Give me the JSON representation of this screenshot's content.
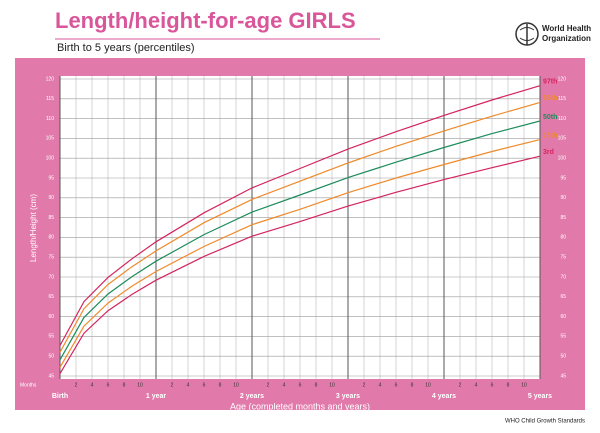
{
  "header": {
    "title": "Length/height-for-age GIRLS",
    "subtitle": "Birth to 5 years (percentiles)",
    "logo_lines": [
      "World Health",
      "Organization"
    ]
  },
  "footer": "WHO Child Growth Standards",
  "chart_data": {
    "type": "line",
    "x_label": "Age (completed months and years)",
    "y_label": "Length/Height (cm)",
    "x_unit_label": "Months",
    "x": [
      0,
      3,
      6,
      9,
      12,
      18,
      24,
      30,
      36,
      42,
      48,
      54,
      60
    ],
    "series": [
      {
        "name": "97th",
        "color": "#d3245f",
        "values": [
          52.7,
          63.8,
          69.9,
          74.6,
          78.9,
          86.2,
          92.5,
          97.4,
          102.3,
          106.7,
          110.8,
          114.7,
          118.3
        ]
      },
      {
        "name": "85th",
        "color": "#ef8a2b",
        "values": [
          51.0,
          62.0,
          68.1,
          72.6,
          76.6,
          83.7,
          89.6,
          94.2,
          98.8,
          103.0,
          106.9,
          110.6,
          114.1
        ]
      },
      {
        "name": "50th",
        "color": "#1e8c5c",
        "values": [
          49.1,
          59.8,
          65.7,
          70.1,
          74.0,
          80.7,
          86.4,
          90.7,
          95.1,
          99.0,
          102.7,
          106.2,
          109.4
        ]
      },
      {
        "name": "15th",
        "color": "#ef8a2b",
        "values": [
          47.2,
          57.6,
          63.4,
          67.7,
          71.4,
          77.7,
          83.2,
          87.1,
          91.3,
          95.0,
          98.4,
          101.7,
          104.7
        ]
      },
      {
        "name": "3rd",
        "color": "#d3245f",
        "values": [
          45.6,
          55.8,
          61.5,
          65.6,
          69.2,
          75.2,
          80.3,
          84.0,
          87.9,
          91.4,
          94.6,
          97.6,
          100.5
        ]
      }
    ],
    "xlim": [
      0,
      60
    ],
    "xticks": [
      {
        "value": 0,
        "label": "Birth"
      },
      {
        "value": 12,
        "label": "1 year"
      },
      {
        "value": 24,
        "label": "2 years"
      },
      {
        "value": 36,
        "label": "3 years"
      },
      {
        "value": 48,
        "label": "4 years"
      },
      {
        "value": 60,
        "label": "5 years"
      }
    ],
    "xticks_minor": [
      2,
      4,
      6,
      8,
      10,
      {
        "value": 14,
        "label": "2"
      },
      {
        "value": 16,
        "label": "4"
      },
      {
        "value": 18,
        "label": "6"
      },
      {
        "value": 20,
        "label": "8"
      },
      {
        "value": 22,
        "label": "10"
      },
      {
        "value": 26,
        "label": "2"
      },
      {
        "value": 28,
        "label": "4"
      },
      {
        "value": 30,
        "label": "6"
      },
      {
        "value": 32,
        "label": "8"
      },
      {
        "value": 34,
        "label": "10"
      },
      {
        "value": 38,
        "label": "2"
      },
      {
        "value": 40,
        "label": "4"
      },
      {
        "value": 42,
        "label": "6"
      },
      {
        "value": 44,
        "label": "8"
      },
      {
        "value": 46,
        "label": "10"
      },
      {
        "value": 50,
        "label": "2"
      },
      {
        "value": 52,
        "label": "4"
      },
      {
        "value": 54,
        "label": "6"
      },
      {
        "value": 56,
        "label": "8"
      },
      {
        "value": 58,
        "label": "10"
      }
    ],
    "ylim": [
      45,
      120
    ],
    "yticks": [
      45,
      50,
      55,
      60,
      65,
      70,
      75,
      80,
      85,
      90,
      95,
      100,
      105,
      110,
      115,
      120
    ],
    "grid": true
  }
}
